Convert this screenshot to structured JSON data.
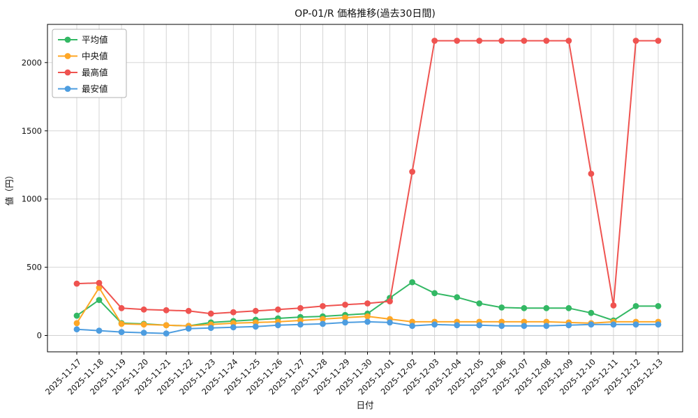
{
  "chart_data": {
    "type": "line",
    "title": "OP-01/R 価格推移(過去30日間)",
    "xlabel": "日付",
    "ylabel": "値（円）",
    "grid": true,
    "legend_position": "upper left",
    "yticks": [
      0,
      500,
      1000,
      1500,
      2000
    ],
    "ylim": [
      -120,
      2280
    ],
    "categories": [
      "2025-11-17",
      "2025-11-18",
      "2025-11-19",
      "2025-11-20",
      "2025-11-21",
      "2025-11-22",
      "2025-11-23",
      "2025-11-24",
      "2025-11-25",
      "2025-11-26",
      "2025-11-27",
      "2025-11-28",
      "2025-11-29",
      "2025-11-30",
      "2025-12-01",
      "2025-12-02",
      "2025-12-03",
      "2025-12-04",
      "2025-12-05",
      "2025-12-06",
      "2025-12-07",
      "2025-12-08",
      "2025-12-09",
      "2025-12-10",
      "2025-12-11",
      "2025-12-12",
      "2025-12-13"
    ],
    "series": [
      {
        "name": "平均値",
        "color": "#33b864",
        "values": [
          145,
          260,
          90,
          85,
          75,
          70,
          95,
          105,
          115,
          125,
          135,
          140,
          150,
          160,
          275,
          390,
          310,
          280,
          235,
          205,
          200,
          200,
          200,
          165,
          110,
          215,
          215
        ]
      },
      {
        "name": "中央値",
        "color": "#ffa726",
        "values": [
          90,
          350,
          85,
          80,
          75,
          70,
          80,
          90,
          95,
          100,
          110,
          120,
          130,
          140,
          120,
          100,
          100,
          100,
          100,
          100,
          100,
          100,
          95,
          90,
          100,
          100,
          100
        ]
      },
      {
        "name": "最高値",
        "color": "#ef5350",
        "values": [
          380,
          385,
          200,
          190,
          185,
          180,
          160,
          170,
          180,
          190,
          200,
          215,
          225,
          235,
          250,
          1200,
          2160,
          2160,
          2160,
          2160,
          2160,
          2160,
          2160,
          1185,
          220,
          2160,
          2160
        ]
      },
      {
        "name": "最安値",
        "color": "#4d9de0",
        "values": [
          45,
          35,
          25,
          20,
          15,
          50,
          55,
          60,
          65,
          75,
          80,
          85,
          95,
          100,
          95,
          70,
          80,
          75,
          75,
          70,
          70,
          70,
          75,
          80,
          80,
          80,
          80
        ]
      }
    ]
  }
}
